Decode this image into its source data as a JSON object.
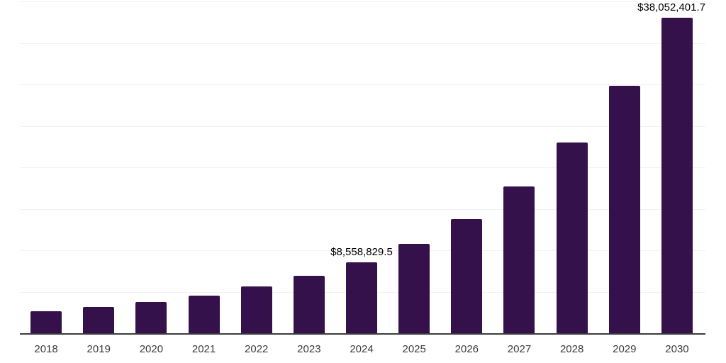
{
  "chart_data": {
    "type": "bar",
    "title": "",
    "xlabel": "",
    "ylabel": "",
    "categories": [
      "2018",
      "2019",
      "2020",
      "2021",
      "2022",
      "2023",
      "2024",
      "2025",
      "2026",
      "2027",
      "2028",
      "2029",
      "2030"
    ],
    "values": [
      2650000,
      3160000,
      3760000,
      4530000,
      5640000,
      6920000,
      8558829.5,
      10770000,
      13760000,
      17690000,
      22990000,
      29830000,
      38052401.7
    ],
    "data_labels": {
      "2024": "$8,558,829.5",
      "2030": "$38,052,401.7"
    },
    "ylim": [
      0,
      40000000
    ],
    "gridline_step": 5000000,
    "grid": "horizontal-only",
    "legend": "none",
    "y_axis_ticks_visible": false,
    "colors": {
      "bar": "#35114C",
      "axis_line": "#3c3c3c",
      "gridline": "#f2f2f2",
      "tick_label": "#3b3b3b",
      "data_label": "#000000",
      "background": "#ffffff"
    }
  }
}
